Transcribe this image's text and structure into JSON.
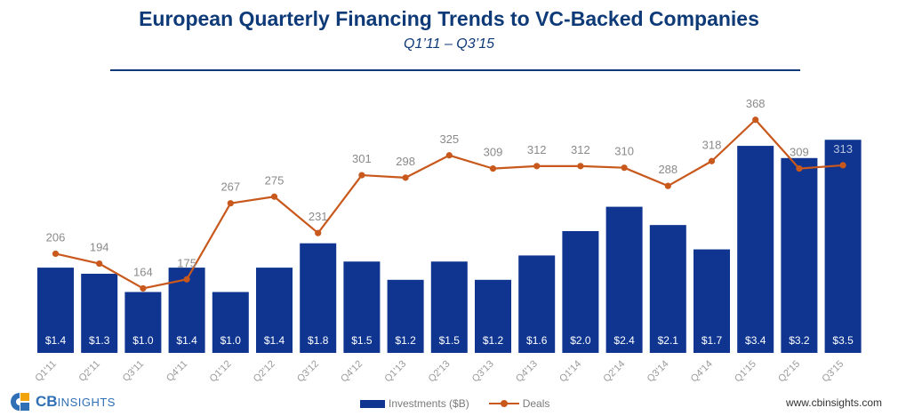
{
  "header": {
    "title": "European Quarterly Financing Trends to VC-Backed Companies",
    "subtitle": "Q1’11 – Q3’15"
  },
  "footer": {
    "brand_cb": "CB",
    "brand_insights": "INSIGHTS",
    "url": "www.cbinsights.com"
  },
  "legend": {
    "investments": "Investments ($B)",
    "deals": "Deals"
  },
  "colors": {
    "bar": "#0f3591",
    "line": "#c8581c",
    "title": "#0e3a78"
  },
  "chart_data": {
    "type": "bar",
    "title": "European Quarterly Financing Trends to VC-Backed Companies",
    "subtitle": "Q1’11 – Q3’15",
    "categories": [
      "Q1'11",
      "Q2'11",
      "Q3'11",
      "Q4'11",
      "Q1'12",
      "Q2'12",
      "Q3'12",
      "Q4'12",
      "Q1'13",
      "Q2'13",
      "Q3'13",
      "Q4'13",
      "Q1'14",
      "Q2'14",
      "Q3'14",
      "Q4'14",
      "Q1'15",
      "Q2'15",
      "Q3'15"
    ],
    "series": [
      {
        "name": "Investments ($B)",
        "type": "bar",
        "values": [
          1.4,
          1.3,
          1.0,
          1.4,
          1.0,
          1.4,
          1.8,
          1.5,
          1.2,
          1.5,
          1.2,
          1.6,
          2.0,
          2.4,
          2.1,
          1.7,
          3.4,
          3.2,
          3.5
        ],
        "labels": [
          "$1.4",
          "$1.3",
          "$1.0",
          "$1.4",
          "$1.0",
          "$1.4",
          "$1.8",
          "$1.5",
          "$1.2",
          "$1.5",
          "$1.2",
          "$1.6",
          "$2.0",
          "$2.4",
          "$2.1",
          "$1.7",
          "$3.4",
          "$3.2",
          "$3.5"
        ]
      },
      {
        "name": "Deals",
        "type": "line",
        "values": [
          206,
          194,
          164,
          175,
          267,
          275,
          231,
          301,
          298,
          325,
          309,
          312,
          312,
          310,
          288,
          318,
          368,
          309,
          313
        ]
      }
    ],
    "legend_position": "bottom-center"
  }
}
